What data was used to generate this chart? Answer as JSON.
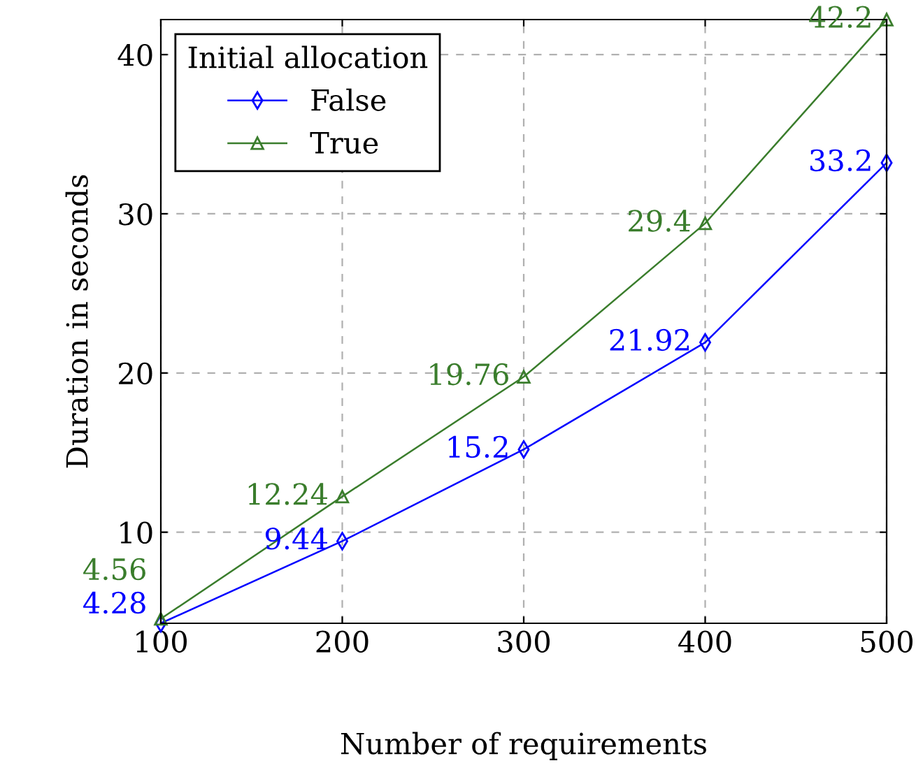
{
  "chart_data": {
    "type": "line",
    "xlabel": "Number of requirements",
    "ylabel": "Duration in seconds",
    "legend_title": "Initial allocation",
    "x": [
      100,
      200,
      300,
      400,
      500
    ],
    "series": [
      {
        "name": "False",
        "color": "#0000ff",
        "marker": "diamond",
        "values": [
          4.28,
          9.44,
          15.2,
          21.92,
          33.2
        ]
      },
      {
        "name": "True",
        "color": "#3a7d2c",
        "marker": "triangle",
        "values": [
          4.56,
          12.24,
          19.76,
          29.4,
          42.2
        ]
      }
    ],
    "xlim": [
      100,
      500
    ],
    "ylim": [
      4.28,
      42.2
    ],
    "xticks": [
      100,
      200,
      300,
      400,
      500
    ],
    "yticks": [
      10,
      20,
      30,
      40
    ],
    "grid": true,
    "legend": "top left",
    "data_labels": true,
    "line_style": "solid"
  }
}
